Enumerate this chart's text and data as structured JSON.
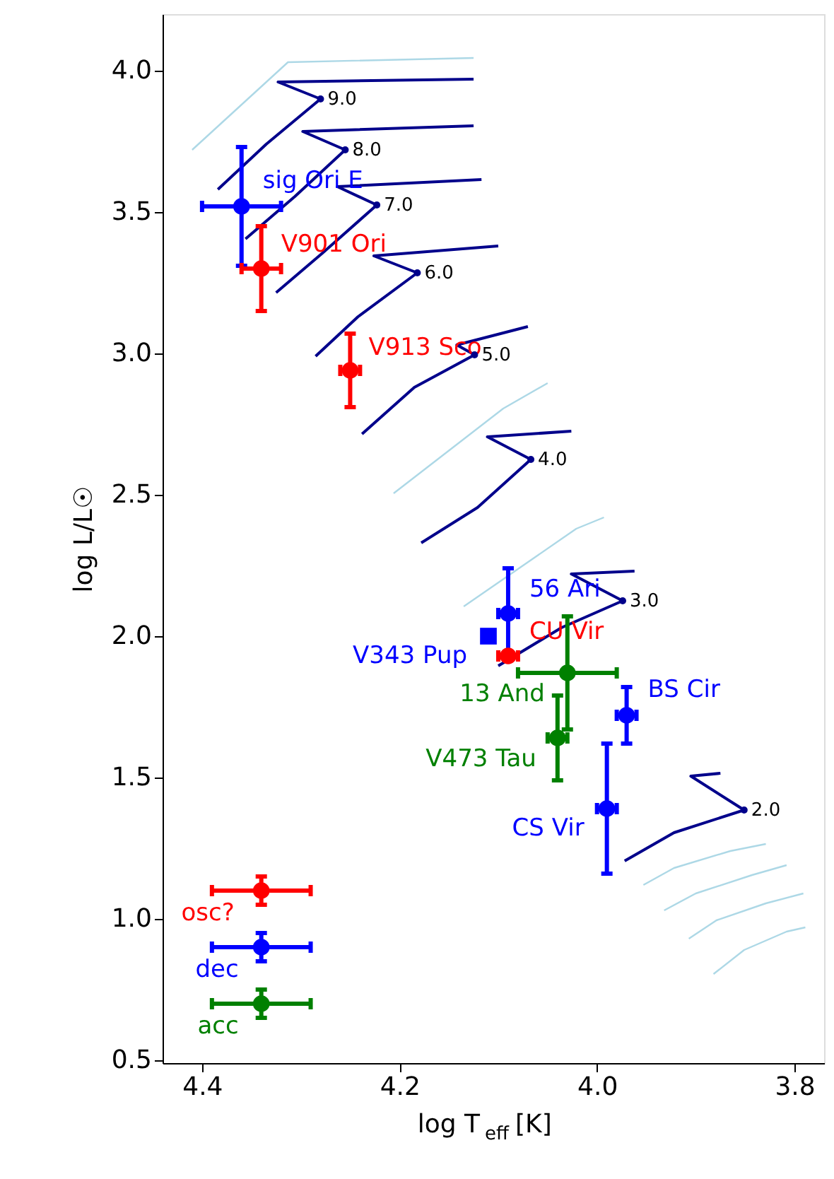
{
  "chart_data": {
    "type": "scatter",
    "xlabel": "log T$_{eff}$ [K]",
    "ylabel": "log L/L☉",
    "xlim": [
      4.44,
      3.77
    ],
    "xticks": [
      4.4,
      4.2,
      {
        "value": 4,
        "label": "4.0"
      },
      3.8
    ],
    "ylim": [
      0.49,
      4.2
    ],
    "yticks": [
      0.5,
      {
        "value": 1,
        "label": "1.0"
      },
      1.5,
      {
        "value": 2,
        "label": "2.0"
      },
      2.5,
      {
        "value": 3,
        "label": "3.0"
      },
      3.5,
      {
        "value": 4,
        "label": "4.0"
      }
    ],
    "grid": false,
    "marker": "circle",
    "series": [
      {
        "type": "line",
        "marker": "none",
        "color": "#add8e6",
        "x": [
          4.41,
          4.313,
          4.125
        ],
        "values": [
          3.72,
          4.03,
          4.045
        ]
      },
      {
        "type": "line",
        "marker": "none",
        "color": "#add8e6",
        "x": [
          4.206,
          4.095,
          4.05
        ],
        "values": [
          2.505,
          2.805,
          2.895
        ]
      },
      {
        "type": "line",
        "marker": "none",
        "color": "#add8e6",
        "x": [
          4.135,
          4.021,
          3.993
        ],
        "values": [
          2.105,
          2.38,
          2.42
        ]
      },
      {
        "type": "line",
        "marker": "none",
        "color": "#add8e6",
        "x": [
          3.953,
          3.922,
          3.865,
          3.829
        ],
        "values": [
          1.12,
          1.18,
          1.24,
          1.265
        ]
      },
      {
        "type": "line",
        "marker": "none",
        "color": "#add8e6",
        "x": [
          3.932,
          3.9,
          3.843,
          3.808
        ],
        "values": [
          1.03,
          1.09,
          1.155,
          1.19
        ]
      },
      {
        "type": "line",
        "marker": "none",
        "color": "#add8e6",
        "x": [
          3.907,
          3.879,
          3.829,
          3.791
        ],
        "values": [
          0.93,
          0.995,
          1.055,
          1.09
        ]
      },
      {
        "type": "line",
        "marker": "none",
        "color": "#add8e6",
        "x": [
          3.882,
          3.851,
          3.808,
          3.789
        ],
        "values": [
          0.805,
          0.89,
          0.955,
          0.97
        ]
      },
      {
        "type": "line",
        "marker": "none",
        "color": "#00008b",
        "x": [
          4.384,
          4.335,
          4.28,
          4.323,
          4.125
        ],
        "values": [
          3.58,
          3.74,
          3.9,
          3.96,
          3.97
        ]
      },
      {
        "type": "line",
        "marker": "none",
        "color": "#00008b",
        "x": [
          4.356,
          4.306,
          4.255,
          4.298,
          4.125
        ],
        "values": [
          3.405,
          3.555,
          3.72,
          3.785,
          3.805
        ]
      },
      {
        "type": "line",
        "marker": "none",
        "color": "#00008b",
        "x": [
          4.325,
          4.278,
          4.223,
          4.263,
          4.117
        ],
        "values": [
          3.215,
          3.355,
          3.525,
          3.59,
          3.615
        ]
      },
      {
        "type": "line",
        "marker": "none",
        "color": "#00008b",
        "x": [
          4.285,
          4.242,
          4.182,
          4.226,
          4.1
        ],
        "values": [
          2.99,
          3.13,
          3.285,
          3.345,
          3.38
        ]
      },
      {
        "type": "line",
        "marker": "none",
        "color": "#00008b",
        "x": [
          4.238,
          4.185,
          4.124,
          4.142,
          4.07
        ],
        "values": [
          2.715,
          2.88,
          2.995,
          3.03,
          3.095
        ]
      },
      {
        "type": "line",
        "marker": "none",
        "color": "#00008b",
        "x": [
          4.178,
          4.121,
          4.067,
          4.111,
          4.026
        ],
        "values": [
          2.33,
          2.455,
          2.625,
          2.705,
          2.725
        ]
      },
      {
        "type": "line",
        "marker": "none",
        "color": "#00008b",
        "x": [
          4.1,
          4.036,
          3.974,
          4.026,
          3.962
        ],
        "values": [
          1.895,
          2.03,
          2.125,
          2.22,
          2.23
        ]
      },
      {
        "type": "line",
        "marker": "none",
        "color": "#00008b",
        "x": [
          3.972,
          3.922,
          3.851,
          3.905,
          3.875
        ],
        "values": [
          1.205,
          1.305,
          1.385,
          1.505,
          1.515
        ]
      },
      {
        "type": "scatter",
        "name": "sig Ori E",
        "color": "#0000ff",
        "x": [
          4.36
        ],
        "values": [
          3.52
        ],
        "errors": [
          0.21
        ],
        "xerrors": [
          0.04
        ]
      },
      {
        "type": "scatter",
        "name": "V901 Ori",
        "color": "#ff0000",
        "x": [
          4.34
        ],
        "values": [
          3.3
        ],
        "errors": [
          0.15
        ],
        "xerrors": [
          0.02
        ]
      },
      {
        "type": "scatter",
        "name": "V913 Sco",
        "color": "#ff0000",
        "x": [
          4.25
        ],
        "values": [
          2.94
        ],
        "errors": [
          0.13
        ],
        "xerrors": [
          0.01
        ]
      },
      {
        "type": "scatter",
        "name": "56 Ari",
        "color": "#0000ff",
        "x": [
          4.09
        ],
        "values": [
          2.08
        ],
        "errors": [
          0.16
        ],
        "xerrors": [
          0.01
        ]
      },
      {
        "type": "scatter",
        "name": "V343 Pup",
        "color": "#0000ff",
        "marker": "square",
        "x": [
          4.11
        ],
        "values": [
          2.0
        ]
      },
      {
        "type": "scatter",
        "name": "CU Vir",
        "color": "#ff0000",
        "x": [
          4.09
        ],
        "values": [
          1.93
        ],
        "xerrors": [
          0.01
        ]
      },
      {
        "type": "scatter",
        "name": "13 And",
        "color": "#008000",
        "x": [
          4.03
        ],
        "values": [
          1.87
        ],
        "errors": [
          0.2
        ],
        "xerrors": [
          0.05
        ]
      },
      {
        "type": "scatter",
        "name": "V473 Tau",
        "color": "#008000",
        "x": [
          4.04
        ],
        "values": [
          1.64
        ],
        "errors": [
          0.15
        ],
        "xerrors": [
          0.01
        ]
      },
      {
        "type": "scatter",
        "name": "BS Cir",
        "color": "#0000ff",
        "x": [
          3.97
        ],
        "values": [
          1.72
        ],
        "errors": [
          0.1
        ],
        "xerrors": [
          0.01
        ]
      },
      {
        "type": "scatter",
        "name": "CS Vir",
        "color": "#0000ff",
        "x": [
          3.99
        ],
        "values": [
          1.39
        ],
        "errors": [
          0.23
        ],
        "xerrors": [
          0.01
        ]
      },
      {
        "type": "scatter",
        "name": "osc?",
        "color": "#ff0000",
        "x": [
          4.34
        ],
        "values": [
          1.1
        ],
        "errors": [
          0.05
        ],
        "xerrors": [
          0.05
        ]
      },
      {
        "type": "scatter",
        "name": "dec",
        "color": "#0000ff",
        "x": [
          4.34
        ],
        "values": [
          0.9
        ],
        "errors": [
          0.05
        ],
        "xerrors": [
          0.05
        ]
      },
      {
        "type": "scatter",
        "name": "acc",
        "color": "#008000",
        "x": [
          4.34
        ],
        "values": [
          0.7
        ],
        "errors": [
          0.05
        ],
        "xerrors": [
          0.05
        ]
      }
    ],
    "annotations": [
      {
        "text": "9.0",
        "x": 4.28,
        "y": 3.9
      },
      {
        "text": "8.0",
        "x": 4.255,
        "y": 3.72
      },
      {
        "text": "7.0",
        "x": 4.223,
        "y": 3.525
      },
      {
        "text": "6.0",
        "x": 4.182,
        "y": 3.285
      },
      {
        "text": "5.0",
        "x": 4.124,
        "y": 2.995
      },
      {
        "text": "4.0",
        "x": 4.067,
        "y": 2.625
      },
      {
        "text": "3.0",
        "x": 3.974,
        "y": 2.125
      },
      {
        "text": "2.0",
        "x": 3.851,
        "y": 1.385
      }
    ]
  }
}
